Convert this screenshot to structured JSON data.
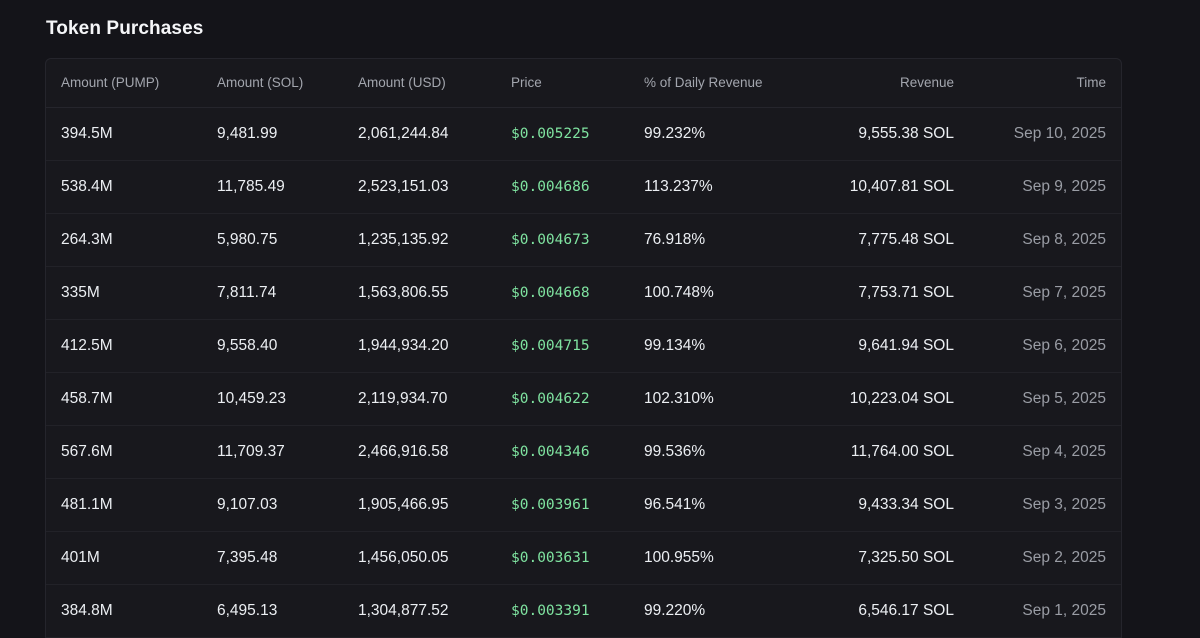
{
  "section": {
    "title": "Token Purchases"
  },
  "table": {
    "columns": {
      "amount_pump": "Amount (PUMP)",
      "amount_sol": "Amount (SOL)",
      "amount_usd": "Amount (USD)",
      "price": "Price",
      "pct_daily_revenue": "% of Daily Revenue",
      "revenue": "Revenue",
      "time": "Time"
    },
    "rows": [
      {
        "amount_pump": "394.5M",
        "amount_sol": "9,481.99",
        "amount_usd": "2,061,244.84",
        "price": "$0.005225",
        "pct": "99.232%",
        "revenue": "9,555.38 SOL",
        "time": "Sep 10, 2025"
      },
      {
        "amount_pump": "538.4M",
        "amount_sol": "11,785.49",
        "amount_usd": "2,523,151.03",
        "price": "$0.004686",
        "pct": "113.237%",
        "revenue": "10,407.81 SOL",
        "time": "Sep 9, 2025"
      },
      {
        "amount_pump": "264.3M",
        "amount_sol": "5,980.75",
        "amount_usd": "1,235,135.92",
        "price": "$0.004673",
        "pct": "76.918%",
        "revenue": "7,775.48 SOL",
        "time": "Sep 8, 2025"
      },
      {
        "amount_pump": "335M",
        "amount_sol": "7,811.74",
        "amount_usd": "1,563,806.55",
        "price": "$0.004668",
        "pct": "100.748%",
        "revenue": "7,753.71 SOL",
        "time": "Sep 7, 2025"
      },
      {
        "amount_pump": "412.5M",
        "amount_sol": "9,558.40",
        "amount_usd": "1,944,934.20",
        "price": "$0.004715",
        "pct": "99.134%",
        "revenue": "9,641.94 SOL",
        "time": "Sep 6, 2025"
      },
      {
        "amount_pump": "458.7M",
        "amount_sol": "10,459.23",
        "amount_usd": "2,119,934.70",
        "price": "$0.004622",
        "pct": "102.310%",
        "revenue": "10,223.04 SOL",
        "time": "Sep 5, 2025"
      },
      {
        "amount_pump": "567.6M",
        "amount_sol": "11,709.37",
        "amount_usd": "2,466,916.58",
        "price": "$0.004346",
        "pct": "99.536%",
        "revenue": "11,764.00 SOL",
        "time": "Sep 4, 2025"
      },
      {
        "amount_pump": "481.1M",
        "amount_sol": "9,107.03",
        "amount_usd": "1,905,466.95",
        "price": "$0.003961",
        "pct": "96.541%",
        "revenue": "9,433.34 SOL",
        "time": "Sep 3, 2025"
      },
      {
        "amount_pump": "401M",
        "amount_sol": "7,395.48",
        "amount_usd": "1,456,050.05",
        "price": "$0.003631",
        "pct": "100.955%",
        "revenue": "7,325.50 SOL",
        "time": "Sep 2, 2025"
      },
      {
        "amount_pump": "384.8M",
        "amount_sol": "6,495.13",
        "amount_usd": "1,304,877.52",
        "price": "$0.003391",
        "pct": "99.220%",
        "revenue": "6,546.17 SOL",
        "time": "Sep 1, 2025"
      }
    ]
  },
  "colors": {
    "background": "#141419",
    "card": "#18181d",
    "price_green": "#7fe3a0",
    "muted_text": "#9a9da5"
  }
}
